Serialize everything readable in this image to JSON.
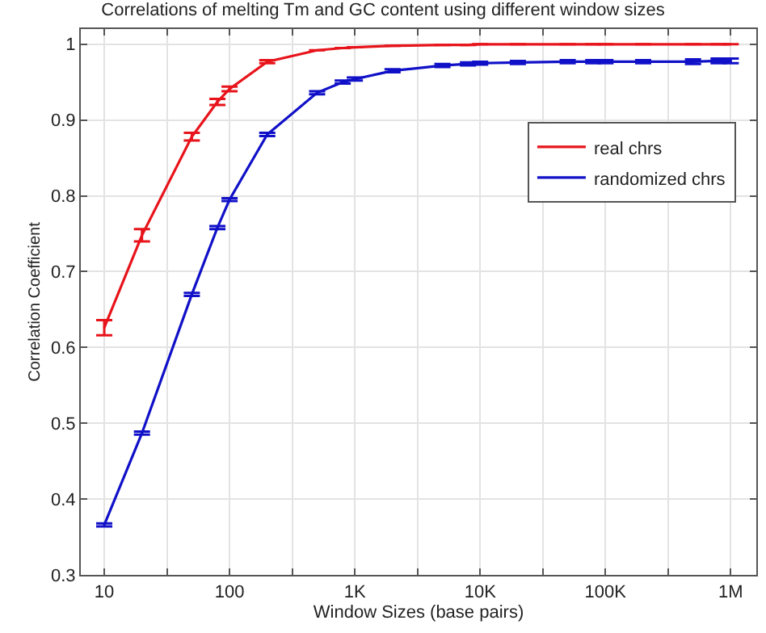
{
  "chart_data": {
    "type": "line",
    "title": "Correlations of melting Tm and GC content using different window sizes",
    "xlabel": "Window Sizes (base pairs)",
    "ylabel": "Correlation Coefficient",
    "x": [
      10,
      20,
      50,
      80,
      100,
      200,
      500,
      800,
      1000,
      2000,
      5000,
      8000,
      10000,
      20000,
      50000,
      80000,
      100000,
      200000,
      500000,
      800000,
      1000000
    ],
    "series": [
      {
        "name": "real chrs",
        "color": "#e8141b",
        "values": [
          0.626,
          0.748,
          0.878,
          0.924,
          0.941,
          0.977,
          0.992,
          0.995,
          0.996,
          0.998,
          0.999,
          0.999,
          1.0,
          1.0,
          1.0,
          1.0,
          1.0,
          1.0,
          1.0,
          1.0,
          1.0
        ],
        "errors": [
          0.01,
          0.008,
          0.005,
          0.004,
          0.003,
          0.002,
          null,
          null,
          null,
          null,
          null,
          null,
          null,
          null,
          null,
          null,
          null,
          null,
          null,
          null,
          null
        ]
      },
      {
        "name": "randomized chrs",
        "color": "#1010c8",
        "values": [
          0.366,
          0.487,
          0.67,
          0.758,
          0.795,
          0.881,
          0.936,
          0.95,
          0.954,
          0.965,
          0.972,
          0.974,
          0.975,
          0.976,
          0.977,
          0.977,
          0.977,
          0.977,
          0.977,
          0.978,
          0.978
        ],
        "errors": [
          0.002,
          0.002,
          0.002,
          0.002,
          0.002,
          0.002,
          0.002,
          0.002,
          0.002,
          0.002,
          0.002,
          0.002,
          0.002,
          0.002,
          0.002,
          0.002,
          0.002,
          0.002,
          0.003,
          0.003,
          0.003
        ]
      }
    ],
    "log": "x",
    "xlim": [
      6.5,
      1600000
    ],
    "xticks": [
      10,
      {
        "value": 31.6,
        "label": null
      },
      100,
      {
        "value": 316,
        "label": null
      },
      {
        "value": 1000,
        "label": "1K"
      },
      {
        "value": 3160,
        "label": null
      },
      {
        "value": 10000,
        "label": "10K"
      },
      {
        "value": 31600,
        "label": null
      },
      {
        "value": 100000,
        "label": "100K"
      },
      {
        "value": 316000,
        "label": null
      },
      {
        "value": 1000000,
        "label": "1M"
      }
    ],
    "ylim": [
      0.3,
      1.02
    ],
    "yticks": [
      0.3,
      0.4,
      0.5,
      0.6,
      0.7,
      0.8,
      0.9,
      1
    ],
    "grid": true,
    "legend": "top right",
    "marker": "none",
    "line_style": "solid"
  }
}
